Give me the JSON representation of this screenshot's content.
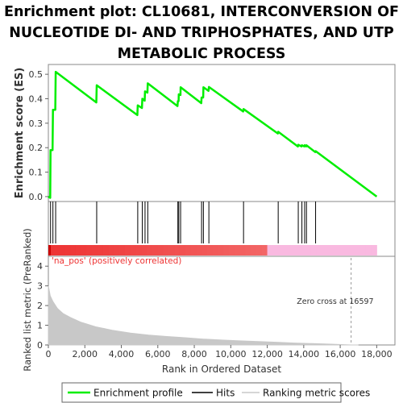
{
  "title_lines": [
    "Enrichment plot: CL10681, INTERCONVERSION OF",
    "NUCLEOTIDE DI- AND TRIPHOSPHATES, AND UTP",
    "METABOLIC PROCESS"
  ],
  "colors": {
    "profile": "#00ee00",
    "hits": "#000000",
    "ranking": "#c8c8c8",
    "pos_band": "#ee3333",
    "neg_band": "#f9b9e0",
    "annotation": "#ee3333"
  },
  "chart_data": {
    "type": "line",
    "es_axis": {
      "ylabel": "Enrichment score (ES)",
      "ylim": [
        -0.02,
        0.54
      ],
      "yticks": [
        "0.0",
        "0.1",
        "0.2",
        "0.3",
        "0.4",
        "0.5"
      ]
    },
    "rank_axis": {
      "ylabel": "Ranked list metric (PreRanked)",
      "ylim": [
        0,
        4.5
      ],
      "yticks": [
        "0",
        "1",
        "2",
        "3",
        "4"
      ]
    },
    "x_axis": {
      "xlabel": "Rank in Ordered Dataset",
      "xlim": [
        0,
        19000
      ],
      "xticks": [
        "0",
        "2,000",
        "4,000",
        "6,000",
        "8,000",
        "10,000",
        "12,000",
        "14,000",
        "16,000",
        "18,000"
      ]
    },
    "annotation": "'na_pos' (positively correlated)",
    "zero_cross_label": "Zero cross at 16597",
    "zero_cross": 16597,
    "dataset_size": 18000,
    "hits": [
      120,
      250,
      400,
      2650,
      4900,
      5150,
      5300,
      5450,
      7100,
      7150,
      7250,
      8400,
      8500,
      8800,
      10700,
      12600,
      13700,
      13900,
      14050,
      14150,
      14650
    ],
    "es_points": [
      [
        0,
        0.0
      ],
      [
        100,
        -0.005
      ],
      [
        120,
        0.19
      ],
      [
        230,
        0.19
      ],
      [
        250,
        0.355
      ],
      [
        380,
        0.355
      ],
      [
        400,
        0.51
      ],
      [
        2630,
        0.385
      ],
      [
        2650,
        0.455
      ],
      [
        4880,
        0.333
      ],
      [
        4900,
        0.373
      ],
      [
        5130,
        0.362
      ],
      [
        5150,
        0.4
      ],
      [
        5280,
        0.392
      ],
      [
        5300,
        0.43
      ],
      [
        5430,
        0.425
      ],
      [
        5450,
        0.463
      ],
      [
        7080,
        0.37
      ],
      [
        7100,
        0.39
      ],
      [
        7140,
        0.39
      ],
      [
        7150,
        0.418
      ],
      [
        7240,
        0.415
      ],
      [
        7250,
        0.447
      ],
      [
        8380,
        0.382
      ],
      [
        8400,
        0.405
      ],
      [
        8490,
        0.405
      ],
      [
        8500,
        0.447
      ],
      [
        8780,
        0.432
      ],
      [
        8800,
        0.448
      ],
      [
        10680,
        0.348
      ],
      [
        10700,
        0.358
      ],
      [
        12580,
        0.258
      ],
      [
        12600,
        0.265
      ],
      [
        13680,
        0.205
      ],
      [
        13700,
        0.212
      ],
      [
        13880,
        0.205
      ],
      [
        13900,
        0.21
      ],
      [
        14030,
        0.205
      ],
      [
        14050,
        0.21
      ],
      [
        14130,
        0.205
      ],
      [
        14150,
        0.21
      ],
      [
        14630,
        0.182
      ],
      [
        14650,
        0.186
      ],
      [
        18000,
        0.0
      ]
    ],
    "ranking_metric_samples": [
      [
        0,
        3.0
      ],
      [
        100,
        2.5
      ],
      [
        250,
        2.2
      ],
      [
        500,
        1.85
      ],
      [
        800,
        1.6
      ],
      [
        1200,
        1.4
      ],
      [
        1800,
        1.15
      ],
      [
        2600,
        0.92
      ],
      [
        3500,
        0.75
      ],
      [
        4500,
        0.6
      ],
      [
        5500,
        0.5
      ],
      [
        6500,
        0.43
      ],
      [
        7500,
        0.37
      ],
      [
        8500,
        0.3
      ],
      [
        9500,
        0.25
      ],
      [
        10500,
        0.21
      ],
      [
        11500,
        0.17
      ],
      [
        12500,
        0.14
      ],
      [
        13500,
        0.1
      ],
      [
        14500,
        0.07
      ],
      [
        15500,
        0.04
      ],
      [
        16597,
        0.0
      ],
      [
        17000,
        0.0
      ]
    ],
    "legend": {
      "placement": "bottom",
      "entries": [
        "Enrichment profile",
        "Hits",
        "Ranking metric scores"
      ]
    }
  }
}
